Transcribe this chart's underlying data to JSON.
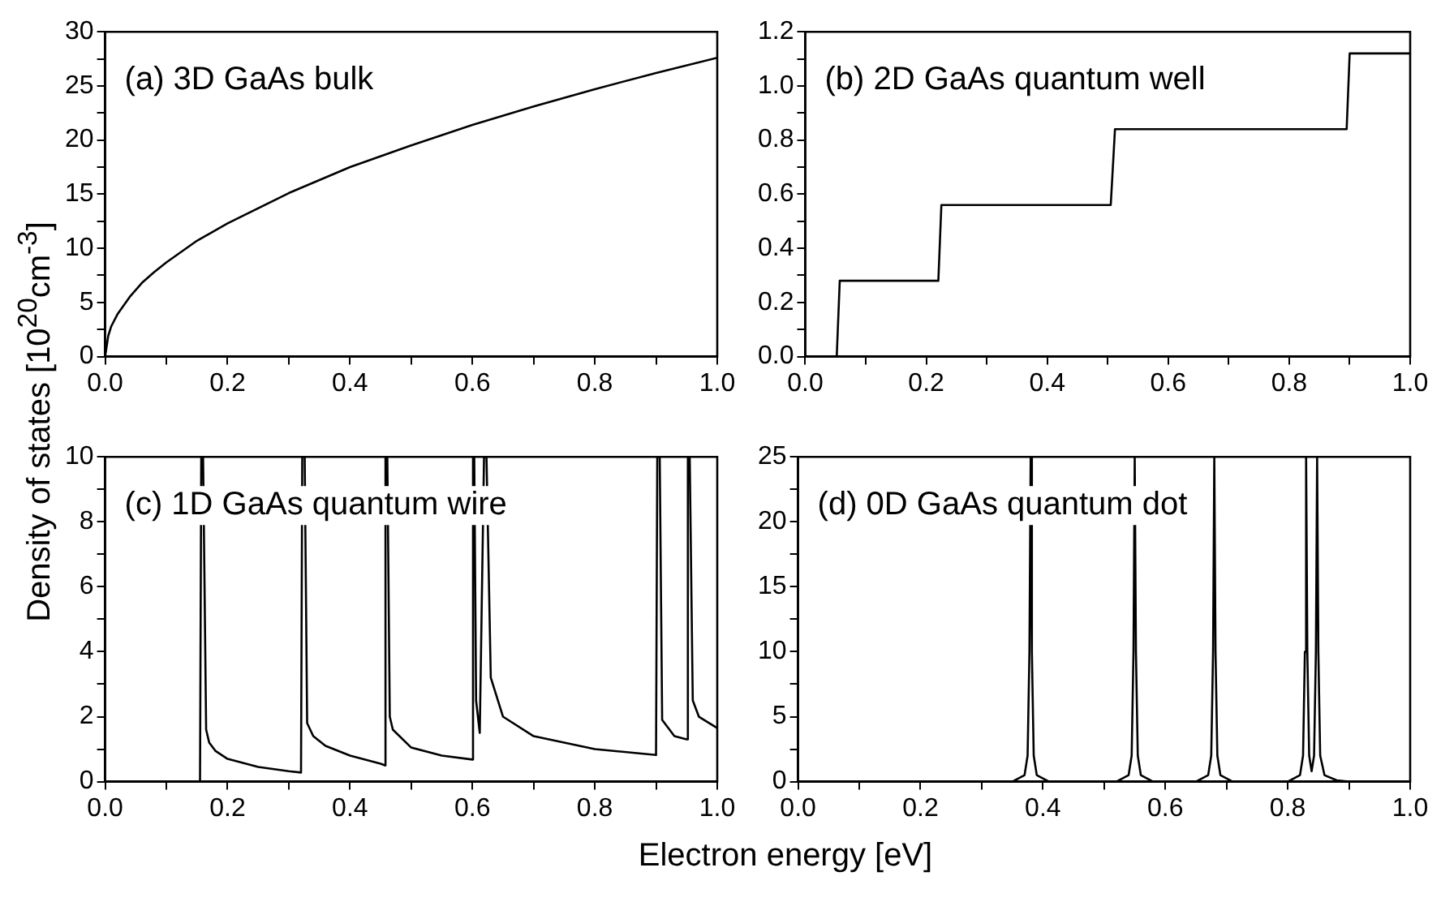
{
  "chart_data": [
    {
      "type": "line",
      "annotations": [
        "(a) 3D GaAs bulk"
      ],
      "ylabel": "Density of states [10$^{20}$cm$^{-3}$]",
      "series": [
        {
          "color": "#000000",
          "x": [
            0,
            0.005,
            0.01,
            0.02,
            0.04,
            0.06,
            0.08,
            0.1,
            0.15,
            0.2,
            0.3,
            0.4,
            0.5,
            0.6,
            0.7,
            0.8,
            0.9,
            1.0
          ],
          "values": [
            0,
            1.9,
            2.8,
            3.9,
            5.5,
            6.8,
            7.8,
            8.7,
            10.7,
            12.3,
            15.1,
            17.5,
            19.5,
            21.4,
            23.1,
            24.7,
            26.2,
            27.6
          ]
        }
      ],
      "xlim": [
        0,
        1
      ],
      "xticks": [
        {
          "value": 0,
          "label": "0.0"
        },
        {
          "value": 0.1,
          "label": null
        },
        {
          "value": 0.2,
          "label": "0.2"
        },
        {
          "value": 0.3,
          "label": null
        },
        {
          "value": 0.4,
          "label": "0.4"
        },
        {
          "value": 0.5,
          "label": null
        },
        {
          "value": 0.6,
          "label": "0.6"
        },
        {
          "value": 0.7,
          "label": null
        },
        {
          "value": 0.8,
          "label": "0.8"
        },
        {
          "value": 0.9,
          "label": null
        },
        {
          "value": 1,
          "label": "1.0"
        }
      ],
      "ylim": [
        0,
        30
      ],
      "yticks": [
        0,
        {
          "value": 2.5,
          "label": null
        },
        5,
        {
          "value": 7.5,
          "label": null
        },
        10,
        {
          "value": 12.5,
          "label": null
        },
        15,
        {
          "value": 17.5,
          "label": null
        },
        20,
        {
          "value": 22.5,
          "label": null
        },
        25,
        {
          "value": 27.5,
          "label": null
        },
        30
      ],
      "grid": false,
      "legend": false,
      "marker": "none",
      "line_style": "solid"
    },
    {
      "type": "line",
      "annotations": [
        "(b) 2D GaAs quantum well"
      ],
      "series": [
        {
          "color": "#000000",
          "x": [
            0,
            0.052,
            0.057,
            0.22,
            0.225,
            0.505,
            0.512,
            0.895,
            0.9,
            1.0
          ],
          "values": [
            0,
            0,
            0.28,
            0.28,
            0.56,
            0.56,
            0.84,
            0.84,
            1.12,
            1.12
          ]
        }
      ],
      "xlim": [
        0,
        1
      ],
      "xticks": [
        {
          "value": 0,
          "label": "0.0"
        },
        {
          "value": 0.1,
          "label": null
        },
        {
          "value": 0.2,
          "label": "0.2"
        },
        {
          "value": 0.3,
          "label": null
        },
        {
          "value": 0.4,
          "label": "0.4"
        },
        {
          "value": 0.5,
          "label": null
        },
        {
          "value": 0.6,
          "label": "0.6"
        },
        {
          "value": 0.7,
          "label": null
        },
        {
          "value": 0.8,
          "label": "0.8"
        },
        {
          "value": 0.9,
          "label": null
        },
        {
          "value": 1,
          "label": "1.0"
        }
      ],
      "ylim": [
        0,
        1.2
      ],
      "yticks": [
        {
          "value": 0,
          "label": "0.0"
        },
        {
          "value": 0.1,
          "label": null
        },
        {
          "value": 0.2,
          "label": "0.2"
        },
        {
          "value": 0.3,
          "label": null
        },
        {
          "value": 0.4,
          "label": "0.4"
        },
        {
          "value": 0.5,
          "label": null
        },
        {
          "value": 0.6,
          "label": "0.6"
        },
        {
          "value": 0.7,
          "label": null
        },
        {
          "value": 0.8,
          "label": "0.8"
        },
        {
          "value": 0.9,
          "label": null
        },
        {
          "value": 1,
          "label": "1.0"
        },
        {
          "value": 1.1,
          "label": null
        },
        {
          "value": 1.2,
          "label": "1.2"
        }
      ],
      "grid": false,
      "legend": false,
      "marker": "none",
      "line_style": "solid"
    },
    {
      "type": "line",
      "annotations": [
        "(c) 1D GaAs quantum wire"
      ],
      "xlabel": "Electron energy [eV]",
      "series": [
        {
          "color": "#000000",
          "x": [
            0,
            0.155,
            0.157,
            0.16,
            0.165,
            0.17,
            0.18,
            0.2,
            0.25,
            0.3,
            0.32,
            0.322,
            0.326,
            0.33,
            0.34,
            0.36,
            0.4,
            0.45,
            0.457,
            0.458,
            0.461,
            0.465,
            0.47,
            0.5,
            0.55,
            0.6,
            0.601,
            0.603,
            0.606,
            0.612,
            0.619,
            0.623,
            0.63,
            0.65,
            0.7,
            0.8,
            0.9,
            0.902,
            0.906,
            0.91,
            0.93,
            0.95,
            0.952,
            0.955,
            0.96,
            0.97,
            1.0
          ],
          "values": [
            0,
            0,
            10,
            10,
            1.6,
            1.2,
            0.95,
            0.7,
            0.45,
            0.32,
            0.28,
            10,
            10,
            1.8,
            1.4,
            1.1,
            0.8,
            0.55,
            0.5,
            10,
            10,
            2.0,
            1.6,
            1.05,
            0.8,
            0.68,
            10,
            10,
            2.5,
            1.5,
            10,
            10,
            3.2,
            2.0,
            1.4,
            1.0,
            0.82,
            10,
            10,
            1.9,
            1.4,
            1.3,
            10,
            10,
            2.5,
            2.0,
            1.65
          ]
        }
      ],
      "xlim": [
        0,
        1
      ],
      "xticks": [
        {
          "value": 0,
          "label": "0.0"
        },
        {
          "value": 0.1,
          "label": null
        },
        {
          "value": 0.2,
          "label": "0.2"
        },
        {
          "value": 0.3,
          "label": null
        },
        {
          "value": 0.4,
          "label": "0.4"
        },
        {
          "value": 0.5,
          "label": null
        },
        {
          "value": 0.6,
          "label": "0.6"
        },
        {
          "value": 0.7,
          "label": null
        },
        {
          "value": 0.8,
          "label": "0.8"
        },
        {
          "value": 0.9,
          "label": null
        },
        {
          "value": 1,
          "label": "1.0"
        }
      ],
      "ylim": [
        0,
        10
      ],
      "yticks": [
        0,
        {
          "value": 1,
          "label": null
        },
        2,
        {
          "value": 3,
          "label": null
        },
        4,
        {
          "value": 5,
          "label": null
        },
        6,
        {
          "value": 7,
          "label": null
        },
        8,
        {
          "value": 9,
          "label": null
        },
        10
      ],
      "grid": false,
      "legend": false,
      "marker": "none",
      "line_style": "solid"
    },
    {
      "type": "line",
      "annotations": [
        "(d) 0D GaAs quantum dot"
      ],
      "series": [
        {
          "color": "#000000",
          "x": [
            0,
            0.35,
            0.37,
            0.375,
            0.378,
            0.38,
            0.382,
            0.385,
            0.39,
            0.41,
            0.52,
            0.54,
            0.545,
            0.548,
            0.55,
            0.552,
            0.555,
            0.56,
            0.58,
            0.65,
            0.67,
            0.675,
            0.678,
            0.68,
            0.682,
            0.685,
            0.69,
            0.71,
            0.8,
            0.82,
            0.825,
            0.828,
            0.83,
            0.832,
            0.835,
            0.839,
            0.843,
            0.846,
            0.848,
            0.85,
            0.853,
            0.86,
            0.88,
            0.9,
            1.0
          ],
          "values": [
            0,
            0,
            0.5,
            2,
            10,
            25,
            10,
            2,
            0.5,
            0,
            0,
            0.5,
            2,
            10,
            25,
            10,
            2,
            0.5,
            0,
            0,
            0.5,
            2,
            10,
            25,
            10,
            2,
            0.5,
            0,
            0,
            0.5,
            2,
            10,
            25,
            10,
            2,
            0.8,
            2,
            10,
            25,
            10,
            2,
            0.5,
            0.1,
            0,
            0
          ]
        }
      ],
      "xlim": [
        0,
        1
      ],
      "xticks": [
        {
          "value": 0,
          "label": "0.0"
        },
        {
          "value": 0.1,
          "label": null
        },
        {
          "value": 0.2,
          "label": "0.2"
        },
        {
          "value": 0.3,
          "label": null
        },
        {
          "value": 0.4,
          "label": "0.4"
        },
        {
          "value": 0.5,
          "label": null
        },
        {
          "value": 0.6,
          "label": "0.6"
        },
        {
          "value": 0.7,
          "label": null
        },
        {
          "value": 0.8,
          "label": "0.8"
        },
        {
          "value": 0.9,
          "label": null
        },
        {
          "value": 1,
          "label": "1.0"
        }
      ],
      "ylim": [
        0,
        25
      ],
      "yticks": [
        0,
        {
          "value": 2.5,
          "label": null
        },
        5,
        {
          "value": 7.5,
          "label": null
        },
        10,
        {
          "value": 12.5,
          "label": null
        },
        15,
        {
          "value": 17.5,
          "label": null
        },
        20,
        {
          "value": 22.5,
          "label": null
        },
        25
      ],
      "grid": false,
      "legend": false,
      "marker": "none",
      "line_style": "solid"
    }
  ]
}
